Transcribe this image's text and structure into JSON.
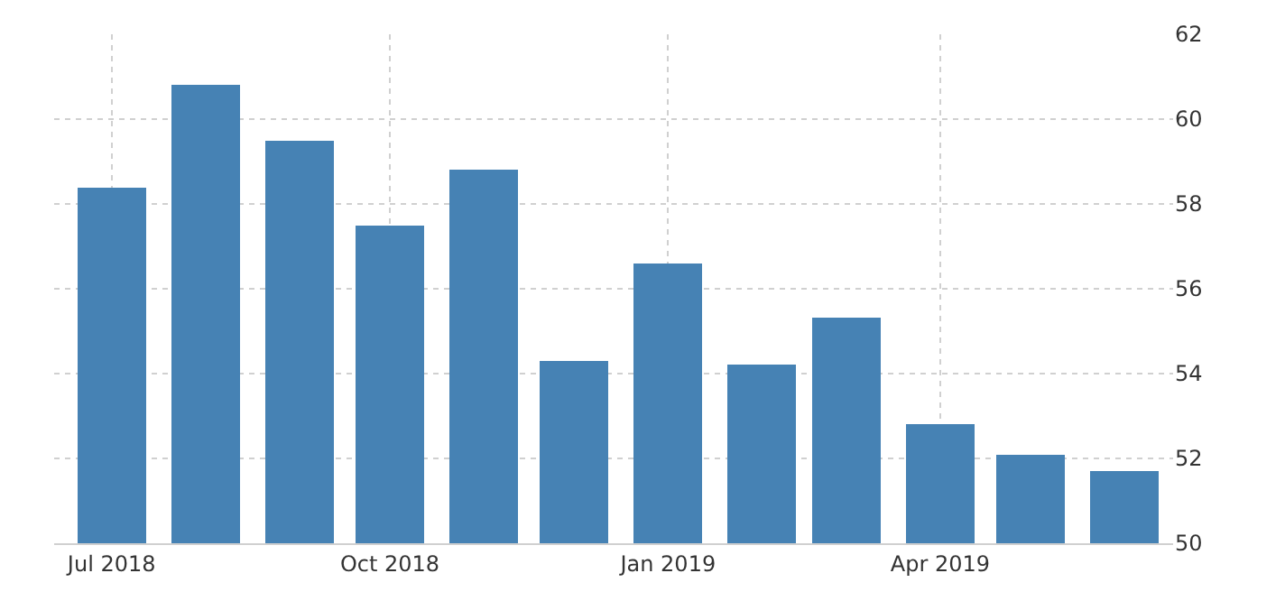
{
  "chart_data": {
    "type": "bar",
    "x": [
      "2018-07",
      "2018-08",
      "2018-09",
      "2018-10",
      "2018-11",
      "2018-12",
      "2019-01",
      "2019-02",
      "2019-03",
      "2019-04",
      "2019-05",
      "2019-06"
    ],
    "values": [
      58.4,
      60.8,
      59.5,
      57.5,
      58.8,
      54.3,
      56.6,
      54.2,
      55.3,
      52.8,
      52.1,
      51.7
    ],
    "color": "#4682b4",
    "xlim": [
      "2018-06-12",
      "2019-06-17"
    ],
    "xticks": [
      {
        "value": "2018-07",
        "label": "Jul 2018"
      },
      {
        "value": "2018-10",
        "label": "Oct 2018"
      },
      {
        "value": "2019-01",
        "label": "Jan 2019"
      },
      {
        "value": "2019-04",
        "label": "Apr 2019"
      }
    ],
    "ylim": [
      50,
      62
    ],
    "yticks": [
      50,
      52,
      54,
      56,
      58,
      60,
      62
    ],
    "grid": true
  }
}
